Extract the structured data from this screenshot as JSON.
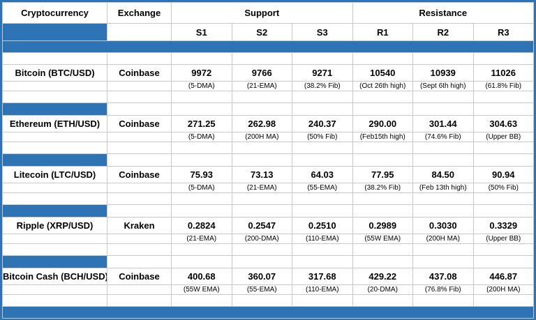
{
  "colors": {
    "accent_blue": "#2e74b5",
    "gridline": "#c8c8c8",
    "outer_border": "#2e74b5",
    "text": "#000000",
    "background": "#ffffff"
  },
  "chart_data": {
    "type": "table",
    "header_groups": {
      "support": "Support",
      "resistance": "Resistance"
    },
    "columns": [
      "Cryptocurrency",
      "Exchange",
      "S1",
      "S2",
      "S3",
      "R1",
      "R2",
      "R3"
    ],
    "rows": [
      {
        "name": "Bitcoin (BTC/USD)",
        "exchange": "Coinbase",
        "values": [
          "9972",
          "9766",
          "9271",
          "10540",
          "10939",
          "11026"
        ],
        "labels": [
          "(5-DMA)",
          "(21-EMA)",
          "(38.2% Fib)",
          "(Oct 26th high)",
          "(Sept 6th high)",
          "(61.8% Fib)"
        ]
      },
      {
        "name": "Ethereum (ETH/USD)",
        "exchange": "Coinbase",
        "values": [
          "271.25",
          "262.98",
          "240.37",
          "290.00",
          "301.44",
          "304.63"
        ],
        "labels": [
          "(5-DMA)",
          "(200H MA)",
          "(50% Fib)",
          "(Feb15th high)",
          "(74.6% Fib)",
          "(Upper BB)"
        ]
      },
      {
        "name": "Litecoin (LTC/USD)",
        "exchange": "Coinbase",
        "values": [
          "75.93",
          "73.13",
          "64.03",
          "77.95",
          "84.50",
          "90.94"
        ],
        "labels": [
          "(5-DMA)",
          "(21-EMA)",
          "(55-EMA)",
          "(38.2% Fib)",
          "(Feb 13th high)",
          "(50% Fib)"
        ]
      },
      {
        "name": "Ripple (XRP/USD)",
        "exchange": "Kraken",
        "values": [
          "0.2824",
          "0.2547",
          "0.2510",
          "0.2989",
          "0.3030",
          "0.3329"
        ],
        "labels": [
          "(21-EMA)",
          "(200-DMA)",
          "(110-EMA)",
          "(55W EMA)",
          "(200H MA)",
          "(Upper BB)"
        ]
      },
      {
        "name": "Bitcoin Cash (BCH/USD)",
        "exchange": "Coinbase",
        "values": [
          "400.68",
          "360.07",
          "317.68",
          "429.22",
          "437.08",
          "446.87"
        ],
        "labels": [
          "(55W EMA)",
          "(55-EMA)",
          "(110-EMA)",
          "(20-DMA)",
          "(76.8% Fib)",
          "(200H MA)"
        ]
      }
    ]
  }
}
